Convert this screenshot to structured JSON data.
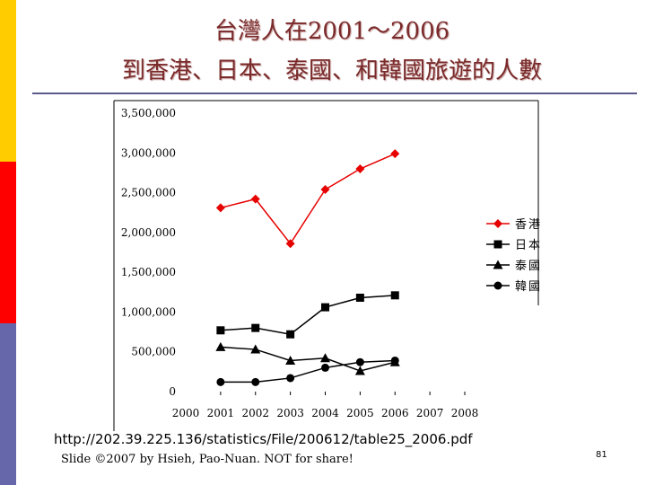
{
  "slide": {
    "title_line1": "台灣人在2001～2006",
    "title_line2": "到香港、日本、泰國、和韓國旅遊的人數",
    "source_url": "http://202.39.225.136/statistics/File/200612/table25_2006.pdf",
    "credit": "Slide ©2007 by Hsieh, Pao-Nuan. NOT for share!",
    "page_number": "81"
  },
  "colors": {
    "title": "#7a2a2a",
    "stripe_yellow": "#ffcc00",
    "stripe_red": "#ff0000",
    "stripe_blue": "#6666aa",
    "series_hongkong": "#e60000",
    "series_other": "#000000"
  },
  "chart_data": {
    "type": "line",
    "title": "",
    "xlabel": "",
    "ylabel": "",
    "x": [
      "2000",
      "2001",
      "2002",
      "2003",
      "2004",
      "2005",
      "2006",
      "2007",
      "2008"
    ],
    "ylim": [
      0,
      3500000
    ],
    "y_ticks": [
      0,
      500000,
      1000000,
      1500000,
      2000000,
      2500000,
      3000000,
      3500000
    ],
    "y_tick_labels": [
      "0",
      "500,000",
      "1,000,000",
      "1,500,000",
      "2,000,000",
      "2,500,000",
      "3,000,000",
      "3,500,000"
    ],
    "grid": false,
    "legend_position": "right",
    "series": [
      {
        "name": "香港",
        "marker": "diamond",
        "color": "#e60000",
        "points": [
          [
            2001,
            2310000
          ],
          [
            2002,
            2420000
          ],
          [
            2003,
            1860000
          ],
          [
            2004,
            2540000
          ],
          [
            2005,
            2800000
          ],
          [
            2006,
            2990000
          ]
        ]
      },
      {
        "name": "日本",
        "marker": "square",
        "color": "#000000",
        "points": [
          [
            2001,
            770000
          ],
          [
            2002,
            800000
          ],
          [
            2003,
            720000
          ],
          [
            2004,
            1060000
          ],
          [
            2005,
            1180000
          ],
          [
            2006,
            1210000
          ]
        ]
      },
      {
        "name": "泰國",
        "marker": "triangle",
        "color": "#000000",
        "points": [
          [
            2001,
            560000
          ],
          [
            2002,
            530000
          ],
          [
            2003,
            390000
          ],
          [
            2004,
            420000
          ],
          [
            2005,
            260000
          ],
          [
            2006,
            370000
          ]
        ]
      },
      {
        "name": "韓國",
        "marker": "circle",
        "color": "#000000",
        "points": [
          [
            2001,
            120000
          ],
          [
            2002,
            120000
          ],
          [
            2003,
            170000
          ],
          [
            2004,
            300000
          ],
          [
            2005,
            370000
          ],
          [
            2006,
            390000
          ]
        ]
      }
    ]
  }
}
